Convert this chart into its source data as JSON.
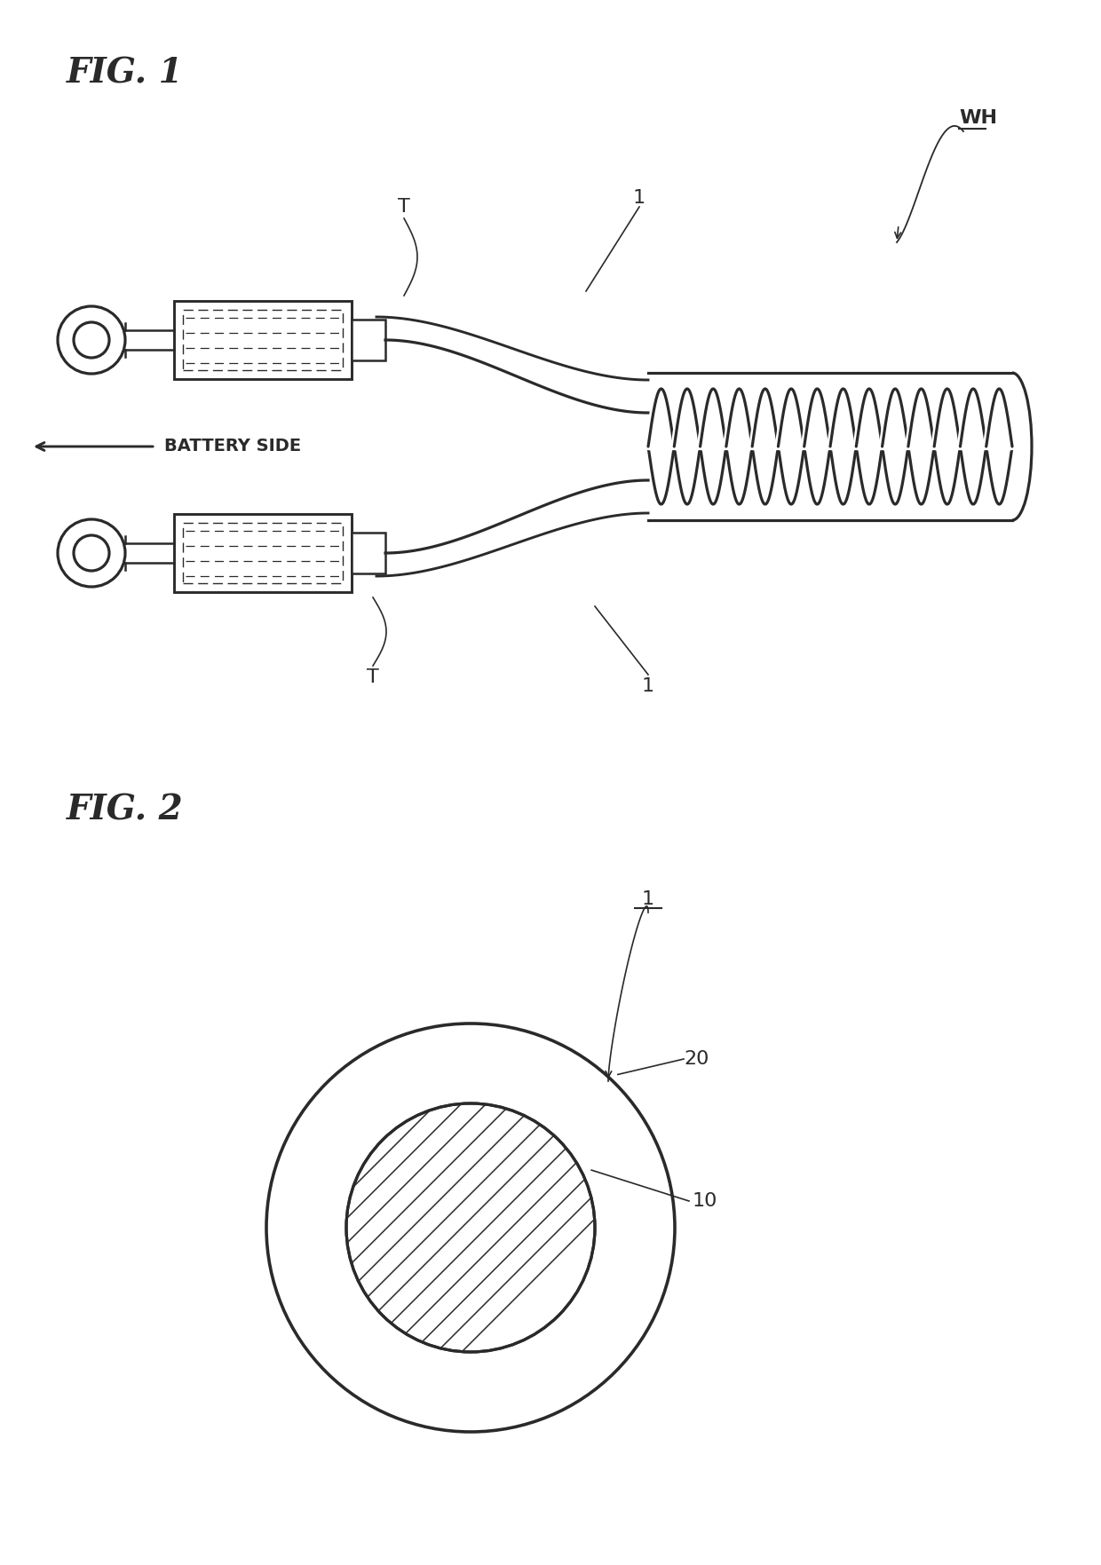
{
  "fig1_title": "FIG. 1",
  "fig2_title": "FIG. 2",
  "background_color": "#ffffff",
  "line_color": "#2a2a2a",
  "line_width": 1.8,
  "label_fontsize": 16,
  "title_fontsize": 28,
  "battery_side_text": "BATTERY SIDE",
  "label_WH": "WH",
  "label_1_top": "1",
  "label_1_bottom": "1",
  "label_T_top": "T",
  "label_T_bottom": "T",
  "label_20": "20",
  "label_10": "10",
  "label_1_fig2": "1"
}
